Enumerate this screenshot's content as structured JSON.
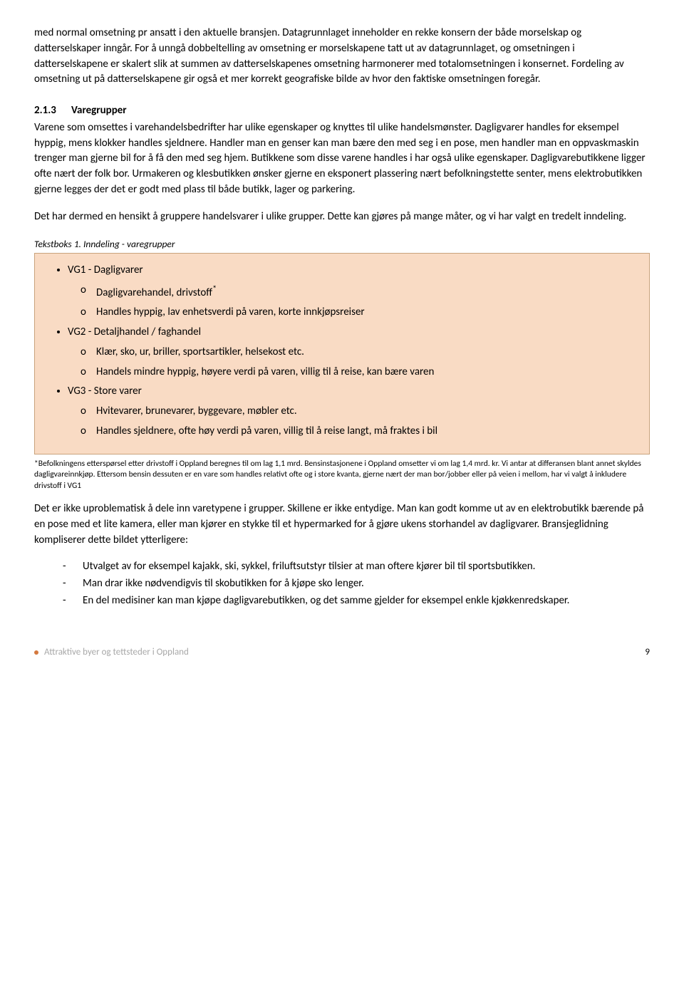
{
  "para1": "med normal omsetning pr ansatt i den aktuelle bransjen. Datagrunnlaget inneholder en rekke konsern der både morselskap og datterselskaper inngår. For å unngå dobbeltelling av omsetning er morselskapene tatt ut av datagrunnlaget, og omsetningen i datterselskapene er skalert slik at summen av datterselskapenes omsetning harmonerer med totalomsetningen i konsernet. Fordeling av omsetning ut på datterselskapene gir også et mer korrekt geografiske bilde av hvor den faktiske omsetningen foregår.",
  "section_num": "2.1.3",
  "section_title": "Varegrupper",
  "para2": "Varene som omsettes i varehandelsbedrifter har ulike egenskaper og knyttes til ulike handelsmønster. Dagligvarer handles for eksempel hyppig, mens klokker handles sjeldnere. Handler man en genser kan man bære den med seg i en pose, men handler man en oppvaskmaskin trenger man gjerne bil for å få den med seg hjem. Butikkene som disse varene handles i har også ulike egenskaper. Dagligvarebutikkene ligger ofte nært der folk bor. Urmakeren og klesbutikken ønsker gjerne en eksponert plassering nært befolkningstette senter, mens elektrobutikken gjerne legges der det er godt med plass til både butikk, lager og parkering.",
  "para3": "Det har dermed en hensikt å gruppere handelsvarer i ulike grupper. Dette kan gjøres på mange måter, og vi har valgt en tredelt inndeling.",
  "caption": "Tekstboks 1. Inndeling - varegrupper",
  "box": {
    "vg1": {
      "label": "VG1 - Dagligvarer",
      "sub1": "Dagligvarehandel, drivstoff",
      "sub1_star": "*",
      "sub2": "Handles hyppig, lav enhetsverdi på varen, korte innkjøpsreiser"
    },
    "vg2": {
      "label": "VG2 - Detaljhandel / faghandel",
      "sub1": "Klær, sko, ur, briller, sportsartikler, helsekost etc.",
      "sub2": "Handels mindre hyppig, høyere verdi på varen, villig til å reise, kan bære varen"
    },
    "vg3": {
      "label": "VG3 - Store varer",
      "sub1": "Hvitevarer, brunevarer, byggevare, møbler etc.",
      "sub2": "Handles sjeldnere, ofte høy verdi på varen, villig til å reise langt, må fraktes i bil"
    }
  },
  "footnote": "*Befolkningens etterspørsel etter drivstoff i Oppland beregnes til om lag 1,1 mrd. Bensinstasjonene i Oppland omsetter vi om lag 1,4 mrd. kr. Vi antar at differansen blant annet skyldes dagligvareinnkjøp. Ettersom bensin dessuten er en vare som handles relativt ofte og i store kvanta, gjerne nært der man bor/jobber eller på veien i mellom, har vi valgt å inkludere drivstoff i VG1",
  "para4": "Det er ikke uproblematisk å dele inn varetypene i grupper. Skillene er ikke entydige. Man kan godt komme ut av en elektrobutikk bærende på en pose med et lite kamera, eller man kjører en stykke til et hypermarked for å gjøre ukens storhandel av dagligvarer. Bransjeglidning kompliserer dette bildet ytterligere:",
  "dash1": "Utvalget av for eksempel kajakk, ski, sykkel, friluftsutstyr tilsier at man oftere kjører bil til sportsbutikken.",
  "dash2": "Man drar ikke nødvendigvis til skobutikken for å kjøpe sko lenger.",
  "dash3": "En del medisiner kan man kjøpe dagligvarebutikken, og det samme gjelder for eksempel enkle kjøkkenredskaper.",
  "footer_left": "Attraktive byer og tettsteder i Oppland",
  "footer_page": "9",
  "colors": {
    "box_bg": "#f9dbc4",
    "box_border": "#c9a37c",
    "footer_text": "#a8a8a8",
    "dot": "#d4793f"
  }
}
